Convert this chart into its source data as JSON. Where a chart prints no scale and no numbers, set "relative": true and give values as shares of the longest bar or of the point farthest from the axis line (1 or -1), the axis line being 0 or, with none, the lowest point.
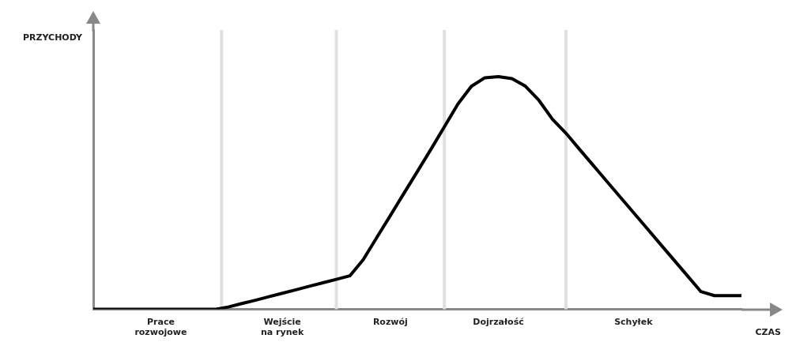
{
  "chart_data": {
    "type": "line",
    "relative": true,
    "xlabel": "CZAS",
    "ylabel": "PRZYCHODY",
    "categories": [
      null,
      null,
      null,
      null,
      null,
      "Prace\nrozwojowe",
      null,
      null,
      null,
      null,
      null,
      null,
      null,
      null,
      "Wejście\nna rynek",
      null,
      null,
      null,
      null,
      null,
      null,
      null,
      "Rozwój",
      null,
      null,
      null,
      null,
      null,
      null,
      null,
      "Dojrzałość",
      null,
      null,
      null,
      null,
      null,
      null,
      null,
      null,
      null,
      "Schyłek",
      null,
      null,
      null,
      null,
      null,
      null,
      null,
      null
    ],
    "series": [
      {
        "color": "#000000",
        "values": [
          0,
          0,
          0,
          0,
          0,
          0,
          0,
          0,
          0,
          0,
          0.01,
          0.025,
          0.039,
          0.054,
          0.069,
          0.084,
          0.099,
          0.114,
          0.129,
          0.144,
          0.214,
          0.309,
          0.403,
          0.498,
          0.592,
          0.687,
          0.784,
          0.882,
          0.958,
          0.995,
          1,
          0.991,
          0.959,
          0.898,
          0.817,
          0.757,
          0.688,
          0.62,
          0.552,
          0.484,
          0.416,
          0.348,
          0.28,
          0.212,
          0.144,
          0.076,
          0.059,
          0.059,
          0.059
        ]
      }
    ],
    "grid": "x",
    "legend": false,
    "marker": "none",
    "line_style": "solid"
  }
}
